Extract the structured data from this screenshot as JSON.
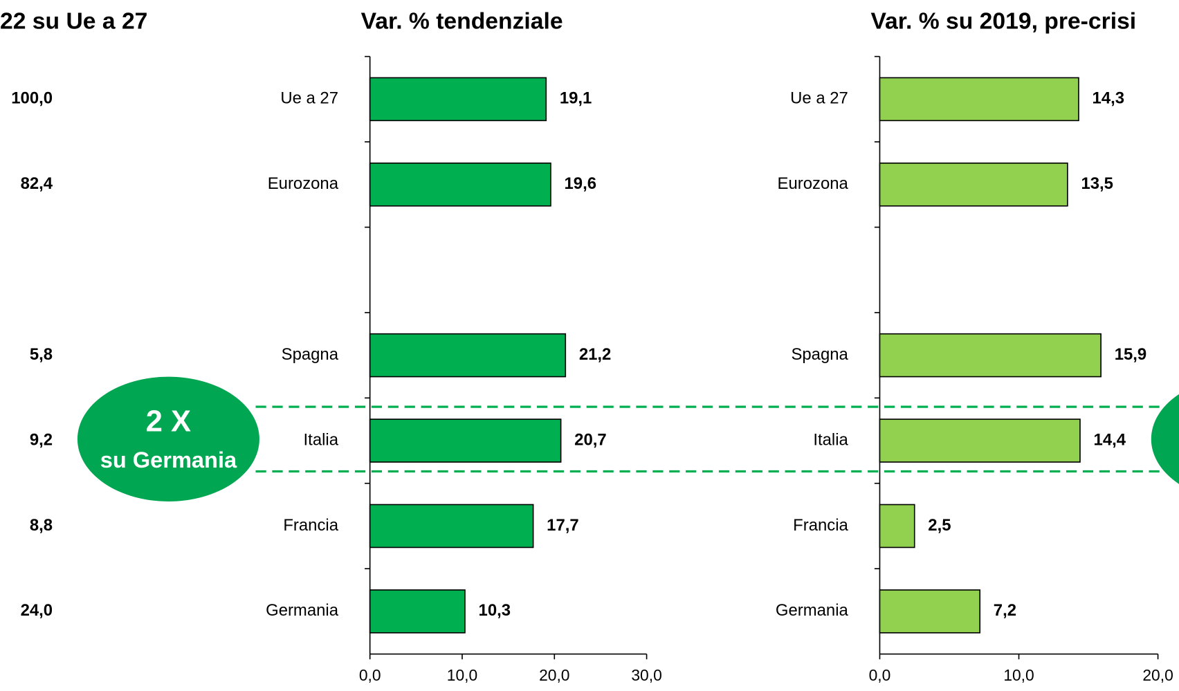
{
  "share_column": {
    "title": "22 su Ue a 27",
    "values": [
      100.0,
      82.4,
      null,
      5.8,
      9.2,
      8.8,
      24.0
    ],
    "value_labels": [
      "100,0",
      "82,4",
      null,
      "5,8",
      "9,2",
      "8,8",
      "24,0"
    ]
  },
  "chart_data": [
    {
      "type": "bar",
      "orientation": "horizontal",
      "title": "Var. % tendenziale",
      "color": "#00b050",
      "categories": [
        "Ue a 27",
        "Eurozona",
        null,
        "Spagna",
        "Italia",
        "Francia",
        "Germania"
      ],
      "values": [
        19.1,
        19.6,
        null,
        21.2,
        20.7,
        17.7,
        10.3
      ],
      "value_labels": [
        "19,1",
        "19,6",
        null,
        "21,2",
        "20,7",
        "17,7",
        "10,3"
      ],
      "xlim": [
        0,
        30
      ],
      "xticks": [
        {
          "value": 0,
          "label": "0,0"
        },
        {
          "value": 10,
          "label": "10,0"
        },
        {
          "value": 20,
          "label": "20,0"
        },
        {
          "value": 30,
          "label": "30,0"
        }
      ],
      "annotations": [
        "2 X",
        "su Germania"
      ]
    },
    {
      "type": "bar",
      "orientation": "horizontal",
      "title": "Var. % su 2019, pre-crisi",
      "color": "#92d050",
      "categories": [
        "Ue a 27",
        "Eurozona",
        null,
        "Spagna",
        "Italia",
        "Francia",
        "Germania"
      ],
      "values": [
        14.3,
        13.5,
        null,
        15.9,
        14.4,
        2.5,
        7.2
      ],
      "value_labels": [
        "14,3",
        "13,5",
        null,
        "15,9",
        "14,4",
        "2,5",
        "7,2"
      ],
      "xlim": [
        0,
        20
      ],
      "xticks": [
        {
          "value": 0,
          "label": "0,0"
        },
        {
          "value": 10,
          "label": "10,0"
        },
        {
          "value": 20,
          "label": "20,0"
        }
      ]
    }
  ]
}
